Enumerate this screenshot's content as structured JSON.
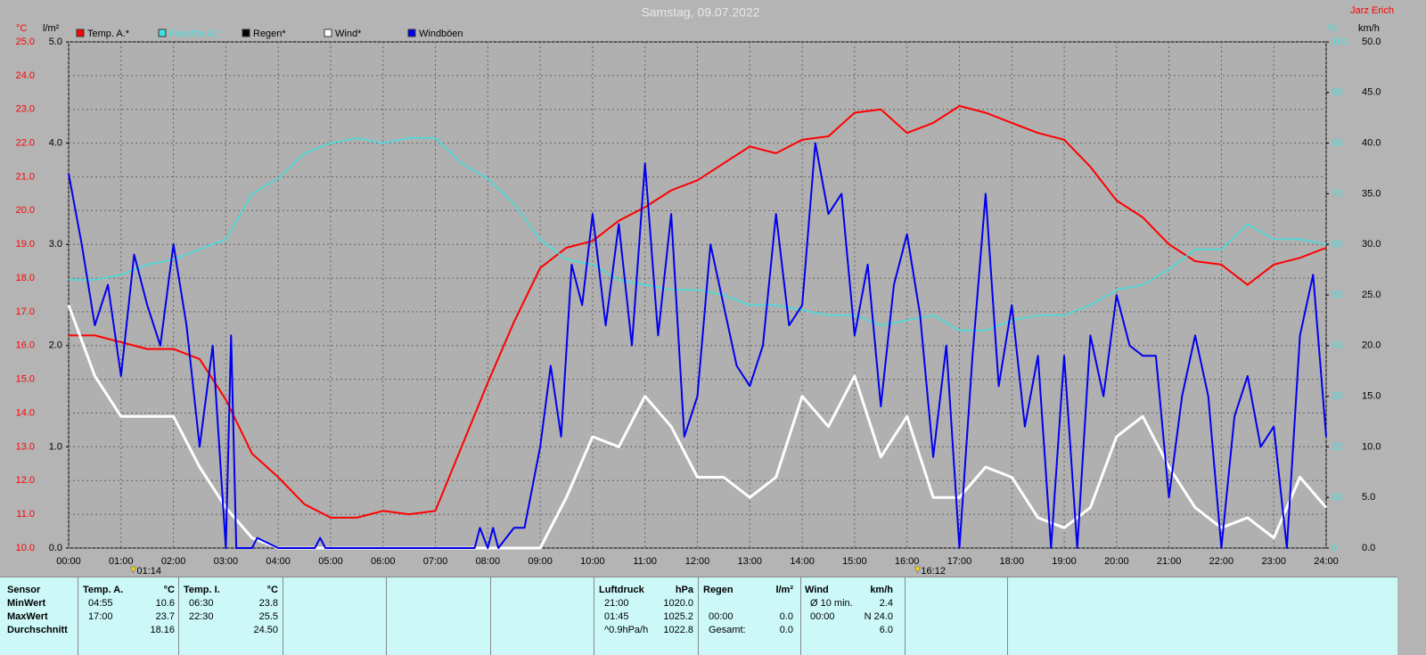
{
  "chart_data": {
    "type": "line",
    "title": "Samstag, 09.07.2022",
    "author": "Jarz Erich",
    "xlim": [
      0,
      24
    ],
    "xticks": [
      {
        "value": 0,
        "label": "00:00"
      },
      {
        "value": 1,
        "label": "01:00"
      },
      {
        "value": 2,
        "label": "02:00"
      },
      {
        "value": 3,
        "label": "03:00"
      },
      {
        "value": 4,
        "label": "04:00"
      },
      {
        "value": 5,
        "label": "05:00"
      },
      {
        "value": 6,
        "label": "06:00"
      },
      {
        "value": 7,
        "label": "07:00"
      },
      {
        "value": 8,
        "label": "08:00"
      },
      {
        "value": 9,
        "label": "09:00"
      },
      {
        "value": 10,
        "label": "10:00"
      },
      {
        "value": 11,
        "label": "11:00"
      },
      {
        "value": 12,
        "label": "12:00"
      },
      {
        "value": 13,
        "label": "13:00"
      },
      {
        "value": 14,
        "label": "14:00"
      },
      {
        "value": 15,
        "label": "15:00"
      },
      {
        "value": 16,
        "label": "16:00"
      },
      {
        "value": 17,
        "label": "17:00"
      },
      {
        "value": 18,
        "label": "18:00"
      },
      {
        "value": 19,
        "label": "19:00"
      },
      {
        "value": 20,
        "label": "20:00"
      },
      {
        "value": 21,
        "label": "21:00"
      },
      {
        "value": 22,
        "label": "22:00"
      },
      {
        "value": 23,
        "label": "23:00"
      },
      {
        "value": 24,
        "label": "24:00"
      }
    ],
    "grid": true,
    "axes": [
      {
        "label": "°C",
        "color": "#ff0000",
        "lim": [
          10,
          25
        ],
        "ticks": [
          {
            "value": 10,
            "label": "10.0"
          },
          {
            "value": 11,
            "label": "11.0"
          },
          {
            "value": 12,
            "label": "12.0"
          },
          {
            "value": 13,
            "label": "13.0"
          },
          {
            "value": 14,
            "label": "14.0"
          },
          {
            "value": 15,
            "label": "15.0"
          },
          {
            "value": 16,
            "label": "16.0"
          },
          {
            "value": 17,
            "label": "17.0"
          },
          {
            "value": 18,
            "label": "18.0"
          },
          {
            "value": 19,
            "label": "19.0"
          },
          {
            "value": 20,
            "label": "20.0"
          },
          {
            "value": 21,
            "label": "21.0"
          },
          {
            "value": 22,
            "label": "22.0"
          },
          {
            "value": 23,
            "label": "23.0"
          },
          {
            "value": 24,
            "label": "24.0"
          },
          {
            "value": 25,
            "label": "25.0"
          }
        ]
      },
      {
        "label": "l/m²",
        "color": "#000000",
        "lim": [
          0,
          5
        ],
        "ticks": [
          {
            "value": 0,
            "label": "0.0"
          },
          {
            "value": 1,
            "label": "1.0"
          },
          {
            "value": 2,
            "label": "2.0"
          },
          {
            "value": 3,
            "label": "3.0"
          },
          {
            "value": 4,
            "label": "4.0"
          },
          {
            "value": 5,
            "label": "5.0"
          }
        ]
      },
      {
        "label": "%",
        "color": "#40e0e0",
        "lim": [
          0,
          100
        ],
        "ticks": [
          0,
          10,
          20,
          30,
          40,
          50,
          60,
          70,
          80,
          90,
          100
        ]
      },
      {
        "label": "km/h",
        "color": "#000000",
        "lim": [
          0,
          50
        ],
        "ticks": [
          {
            "value": 0,
            "label": "0.0"
          },
          {
            "value": 5,
            "label": "5.0"
          },
          {
            "value": 10,
            "label": "10.0"
          },
          {
            "value": 15,
            "label": "15.0"
          },
          {
            "value": 20,
            "label": "20.0"
          },
          {
            "value": 25,
            "label": "25.0"
          },
          {
            "value": 30,
            "label": "30.0"
          },
          {
            "value": 35,
            "label": "35.0"
          },
          {
            "value": 40,
            "label": "40.0"
          },
          {
            "value": 45,
            "label": "45.0"
          },
          {
            "value": 50,
            "label": "50.0"
          }
        ]
      }
    ],
    "x": [
      0,
      0.5,
      1,
      1.5,
      2,
      2.5,
      3,
      3.5,
      4,
      4.5,
      5,
      5.5,
      6,
      6.5,
      7,
      7.5,
      8,
      8.5,
      9,
      9.5,
      10,
      10.5,
      11,
      11.5,
      12,
      12.5,
      13,
      13.5,
      14,
      14.5,
      15,
      15.5,
      16,
      16.5,
      17,
      17.5,
      18,
      18.5,
      19,
      19.5,
      20,
      20.5,
      21,
      21.5,
      22,
      22.5,
      23,
      23.5,
      24
    ],
    "series": [
      {
        "name": "Temp. A.*",
        "color": "#ff0000",
        "axis": 0,
        "values": [
          16.3,
          16.3,
          16.1,
          15.9,
          15.9,
          15.6,
          14.4,
          12.8,
          12.1,
          11.3,
          10.9,
          10.9,
          11.1,
          11.0,
          11.1,
          13.0,
          14.9,
          16.7,
          18.3,
          18.9,
          19.1,
          19.7,
          20.1,
          20.6,
          20.9,
          21.4,
          21.9,
          21.7,
          22.1,
          22.2,
          22.9,
          23.0,
          22.3,
          22.6,
          23.1,
          22.9,
          22.6,
          22.3,
          22.1,
          21.3,
          20.3,
          19.8,
          19.0,
          18.5,
          18.4,
          17.8,
          18.4,
          18.6,
          18.9
        ]
      },
      {
        "name": "Feuchte A.*",
        "color": "#40e0e0",
        "axis": 2,
        "values": [
          53,
          53,
          54,
          56,
          57,
          59,
          61,
          70,
          73,
          78,
          80,
          81,
          80,
          81,
          81,
          76,
          73,
          68,
          61,
          57,
          56,
          53,
          52,
          51,
          51,
          50,
          48,
          48,
          47,
          46,
          46,
          44,
          45,
          46,
          43,
          43,
          45,
          46,
          46,
          48,
          51,
          52,
          55,
          59,
          59,
          64,
          61,
          61,
          60
        ]
      },
      {
        "name": "Regen*",
        "color": "#000000",
        "axis": 1
      },
      {
        "name": "Wind*",
        "color": "#ffffff",
        "axis": 3,
        "values": [
          24,
          17,
          13,
          13,
          13,
          8,
          4,
          1,
          0,
          0,
          0,
          0,
          0,
          0,
          0,
          0,
          0,
          0,
          0,
          5,
          11,
          10,
          15,
          12,
          7,
          7,
          5,
          7,
          15,
          12,
          17,
          9,
          13,
          5,
          5,
          8,
          7,
          3,
          2,
          4,
          11,
          13,
          8,
          4,
          2,
          3,
          1,
          7,
          4
        ]
      },
      {
        "name": "Windböen",
        "color": "#0000ee",
        "axis": 3,
        "x": [
          0,
          0.25,
          0.5,
          0.75,
          1,
          1.25,
          1.5,
          1.75,
          2,
          2.25,
          2.5,
          2.75,
          3,
          3.1,
          3.2,
          3.5,
          3.6,
          4,
          4.7,
          4.8,
          4.9,
          5,
          7.75,
          7.85,
          8,
          8.1,
          8.2,
          8.5,
          8.7,
          9,
          9.2,
          9.4,
          9.6,
          9.8,
          10,
          10.25,
          10.5,
          10.75,
          11,
          11.25,
          11.5,
          11.75,
          12,
          12.25,
          12.5,
          12.75,
          13,
          13.25,
          13.5,
          13.75,
          14,
          14.25,
          14.5,
          14.75,
          15,
          15.25,
          15.5,
          15.75,
          16,
          16.25,
          16.5,
          16.75,
          17,
          17.25,
          17.5,
          17.75,
          18,
          18.25,
          18.5,
          18.75,
          19,
          19.25,
          19.5,
          19.75,
          20,
          20.25,
          20.5,
          20.75,
          21,
          21.25,
          21.5,
          21.75,
          22,
          22.25,
          22.5,
          22.75,
          23,
          23.25,
          23.5,
          23.75,
          24
        ],
        "values": [
          37,
          30,
          22,
          26,
          17,
          29,
          24,
          20,
          30,
          22,
          10,
          20,
          0,
          21,
          0,
          0,
          1,
          0,
          0,
          1,
          0,
          0,
          0,
          2,
          0,
          2,
          0,
          2,
          2,
          10,
          18,
          11,
          28,
          24,
          33,
          22,
          32,
          20,
          38,
          21,
          33,
          11,
          15,
          30,
          24,
          18,
          16,
          20,
          33,
          22,
          24,
          40,
          33,
          35,
          21,
          28,
          14,
          26,
          31,
          23,
          9,
          20,
          0,
          19,
          35,
          16,
          24,
          12,
          19,
          0,
          19,
          0,
          21,
          15,
          25,
          20,
          19,
          19,
          5,
          15,
          21,
          15,
          0,
          13,
          17,
          10,
          12,
          0,
          21,
          27,
          11
        ]
      }
    ],
    "annotations": [
      {
        "x": 1.2333,
        "label": "01:14"
      },
      {
        "x": 16.2,
        "label": "16:12"
      }
    ]
  },
  "table": {
    "sections": [
      {
        "header": [
          "Sensor"
        ],
        "rows": [
          [
            "MinWert"
          ],
          [
            "MaxWert"
          ],
          [
            "Durchschnitt"
          ]
        ]
      },
      {
        "header": [
          "Temp. A.",
          "°C"
        ],
        "rows": [
          [
            "04:55",
            "10.6"
          ],
          [
            "17:00",
            "23.7"
          ],
          [
            null,
            "18.16"
          ]
        ]
      },
      {
        "header": [
          "Temp. I.",
          "°C"
        ],
        "rows": [
          [
            "06:30",
            "23.8"
          ],
          [
            "22:30",
            "25.5"
          ],
          [
            null,
            "24.50"
          ]
        ]
      },
      {
        "header": [
          "Luftdruck",
          "hPa"
        ],
        "rows": [
          [
            "21:00",
            "1020.0"
          ],
          [
            "01:45",
            "1025.2"
          ],
          [
            "^0.9hPa/h",
            "1022.8"
          ]
        ]
      },
      {
        "header": [
          "Regen",
          "l/m²"
        ],
        "rows": [
          [
            null,
            null
          ],
          [
            "00:00",
            "0.0"
          ],
          [
            "Gesamt:",
            "0.0"
          ]
        ]
      },
      {
        "header": [
          "Wind",
          "km/h"
        ],
        "rows": [
          [
            "Ø 10 min.",
            "2.4"
          ],
          [
            "00:00",
            "N 24.0"
          ],
          [
            null,
            "6.0"
          ]
        ]
      }
    ]
  }
}
